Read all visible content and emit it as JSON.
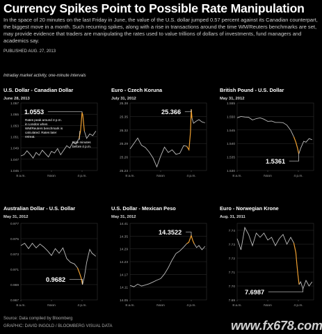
{
  "headline": "Currency Spikes Point to Possible Rate Manipulation",
  "dek": "In the space of 20 minutes on the last Friday in June, the value of the U.S. dollar jumped 0.57 percent against its Canadian counterpart, the biggest move in a month. Such recurring spikes, along with a rise in transactions around the time WM/Reuters benchmarks are set, may provide evidence that traders are manipulating the rates used to value trillions of dollars of investments, fund managers and academics say.",
  "published": "PUBLISHED AUG. 27, 2013",
  "subtitle": "Intraday market activity, one-minute intervals",
  "source": "Source: Data compiled by Bloomberg",
  "credit": "GRAPHIC: DAVID INGOLD / BLOOMBERG VISUAL DATA",
  "watermark": "www.fx678.com",
  "colors": {
    "background": "#000000",
    "line": "#bdbdbd",
    "highlight": "#f0a030",
    "grid": "#333333",
    "text": "#ffffff"
  },
  "chart_data": [
    {
      "type": "line",
      "title": "U.S. Dollar - Canadian Dollar",
      "date": "June 28, 2013",
      "yticks": [
        "1.057",
        "1.055",
        "1.053",
        "1.051",
        "1.049",
        "1.047",
        "1.045"
      ],
      "ylim": [
        1.045,
        1.057
      ],
      "xticks": [
        "8 a.m.",
        "Noon",
        "4 p.m."
      ],
      "xlim": [
        8,
        18
      ],
      "highlight": [
        15.67,
        16.33
      ],
      "series": [
        {
          "x": [
            8,
            8.4,
            8.8,
            9.2,
            9.6,
            10,
            10.4,
            10.8,
            11.2,
            11.6,
            12,
            12.4,
            12.8,
            13.2,
            13.6,
            14,
            14.4,
            14.8,
            15.2,
            15.6,
            15.8,
            16.0,
            16.1,
            16.3,
            16.6,
            17,
            17.4,
            17.8
          ],
          "values": [
            1.0476,
            1.0478,
            1.0485,
            1.0479,
            1.0472,
            1.0482,
            1.0477,
            1.0486,
            1.048,
            1.0474,
            1.0484,
            1.0481,
            1.0489,
            1.0478,
            1.0486,
            1.0494,
            1.049,
            1.05,
            1.0497,
            1.0507,
            1.052,
            1.0553,
            1.0548,
            1.052,
            1.0507,
            1.0515,
            1.0512,
            1.052
          ]
        }
      ],
      "callout_value": "1.0553",
      "callout_note": "Rates peak around 4 p.m. in London when WM/Reuters benchmark is calculated. Rates later retreat.",
      "rise_note": "Rise minutes before 4 p.m."
    },
    {
      "type": "line",
      "title": "Euro - Czech Koruna",
      "date": "July 31, 2012",
      "yticks": [
        "25.38",
        "25.35",
        "25.32",
        "25.29",
        "25.26",
        "25.23"
      ],
      "ylim": [
        25.23,
        25.38
      ],
      "xticks": [
        "8 a.m.",
        "Noon",
        "4 p.m."
      ],
      "xlim": [
        8,
        18
      ],
      "highlight": [
        15.67,
        16.1
      ],
      "series": [
        {
          "x": [
            8,
            8.5,
            9,
            9.5,
            10,
            10.5,
            11,
            11.5,
            12,
            12.5,
            13,
            13.5,
            14,
            14.5,
            15,
            15.4,
            15.7,
            15.9,
            16.0,
            16.1,
            16.3,
            16.6,
            17,
            17.4,
            17.8
          ],
          "values": [
            25.278,
            25.29,
            25.302,
            25.286,
            25.281,
            25.271,
            25.258,
            25.238,
            25.262,
            25.282,
            25.27,
            25.276,
            25.266,
            25.268,
            25.285,
            25.284,
            25.276,
            25.315,
            25.366,
            25.346,
            25.335,
            25.339,
            25.343,
            25.338,
            25.336
          ]
        }
      ],
      "callout_value": "25.366"
    },
    {
      "type": "line",
      "title": "British Pound - U.S. Dollar",
      "date": "May 31, 2012",
      "yticks": [
        "1.555",
        "1.550",
        "1.545",
        "1.540",
        "1.535",
        "1.530"
      ],
      "ylim": [
        1.53,
        1.555
      ],
      "xticks": [
        "8 a.m.",
        "Noon",
        "4 p.m."
      ],
      "xlim": [
        8,
        18
      ],
      "highlight": [
        15.67,
        16.1
      ],
      "series": [
        {
          "x": [
            8,
            8.5,
            9,
            9.5,
            10,
            10.5,
            11,
            11.5,
            12,
            12.5,
            13,
            13.5,
            14,
            14.5,
            15,
            15.4,
            15.67,
            15.9,
            16.05,
            16.3,
            16.7,
            17,
            17.4,
            17.8
          ],
          "values": [
            1.5495,
            1.55,
            1.5498,
            1.5497,
            1.5487,
            1.5492,
            1.5495,
            1.549,
            1.5482,
            1.5483,
            1.5478,
            1.5478,
            1.5477,
            1.5468,
            1.5449,
            1.5425,
            1.5405,
            1.5382,
            1.5361,
            1.5382,
            1.5408,
            1.5405,
            1.5418,
            1.5414
          ]
        }
      ],
      "callout_value": "1.5361"
    },
    {
      "type": "line",
      "title": "Australian Dollar - U.S. Dollar",
      "date": "May 31, 2012",
      "yticks": [
        "0.977",
        "0.975",
        "0.973",
        "0.971",
        "0.969",
        "0.967"
      ],
      "ylim": [
        0.967,
        0.977
      ],
      "xticks": [
        "8 a.m.",
        "Noon",
        "4 p.m."
      ],
      "xlim": [
        8,
        18
      ],
      "highlight": [
        15.67,
        16.1
      ],
      "series": [
        {
          "x": [
            8,
            8.5,
            9,
            9.5,
            10,
            10.5,
            11,
            11.5,
            12,
            12.5,
            13,
            13.5,
            14,
            14.5,
            15,
            15.4,
            15.67,
            15.9,
            16.05,
            16.3,
            16.6,
            17,
            17.3,
            17.8
          ],
          "values": [
            0.9741,
            0.9744,
            0.9737,
            0.9744,
            0.9738,
            0.9743,
            0.9739,
            0.9734,
            0.9728,
            0.9737,
            0.9731,
            0.9738,
            0.9724,
            0.9719,
            0.9717,
            0.9712,
            0.9705,
            0.9698,
            0.969,
            0.97,
            0.9719,
            0.9736,
            0.9731,
            0.9727
          ]
        }
      ],
      "callout_value": "0.9682"
    },
    {
      "type": "line",
      "title": "U.S. Dollar - Mexican Peso",
      "date": "May 31, 2012",
      "yticks": [
        "14.41",
        "14.35",
        "14.29",
        "14.23",
        "14.17",
        "14.11",
        "14.05"
      ],
      "ylim": [
        14.05,
        14.41
      ],
      "xticks": [
        "8 a.m.",
        "Noon",
        "4 p.m."
      ],
      "xlim": [
        8,
        18
      ],
      "highlight": [
        15.67,
        16.4
      ],
      "series": [
        {
          "x": [
            8,
            8.5,
            9,
            9.5,
            10,
            10.5,
            11,
            11.5,
            12,
            12.5,
            13,
            13.5,
            14,
            14.5,
            15,
            15.4,
            15.67,
            15.9,
            16.0,
            16.2,
            16.4,
            16.7,
            17,
            17.4,
            17.8
          ],
          "values": [
            14.118,
            14.112,
            14.124,
            14.115,
            14.12,
            14.126,
            14.134,
            14.143,
            14.15,
            14.172,
            14.202,
            14.238,
            14.268,
            14.28,
            14.298,
            14.314,
            14.321,
            14.343,
            14.352,
            14.329,
            14.313,
            14.296,
            14.306,
            14.286,
            14.302
          ]
        }
      ],
      "callout_value": "14.3522"
    },
    {
      "type": "line",
      "title": "Euro - Norwegian Krone",
      "date": "Aug. 31, 2011",
      "yticks": [
        "7.74",
        "7.73",
        "7.72",
        "7.71",
        "7.70",
        "7.69"
      ],
      "ylim": [
        7.69,
        7.745
      ],
      "xticks": [
        "8 a.m.",
        "Noon",
        "4 p.m."
      ],
      "xlim": [
        8,
        18
      ],
      "highlight": [
        15.67,
        16.1
      ],
      "series": [
        {
          "x": [
            8,
            8.5,
            9,
            9.5,
            10,
            10.5,
            11,
            11.5,
            12,
            12.5,
            13,
            13.5,
            14,
            14.5,
            15,
            15.4,
            15.67,
            15.8,
            15.95,
            16.1,
            16.3,
            16.6,
            17,
            17.4,
            17.8
          ],
          "values": [
            7.734,
            7.726,
            7.742,
            7.737,
            7.729,
            7.738,
            7.735,
            7.738,
            7.733,
            7.735,
            7.729,
            7.734,
            7.737,
            7.73,
            7.735,
            7.731,
            7.724,
            7.716,
            7.708,
            7.701,
            7.703,
            7.698,
            7.704,
            7.7,
            7.703
          ]
        }
      ],
      "callout_value": "7.6987"
    }
  ]
}
